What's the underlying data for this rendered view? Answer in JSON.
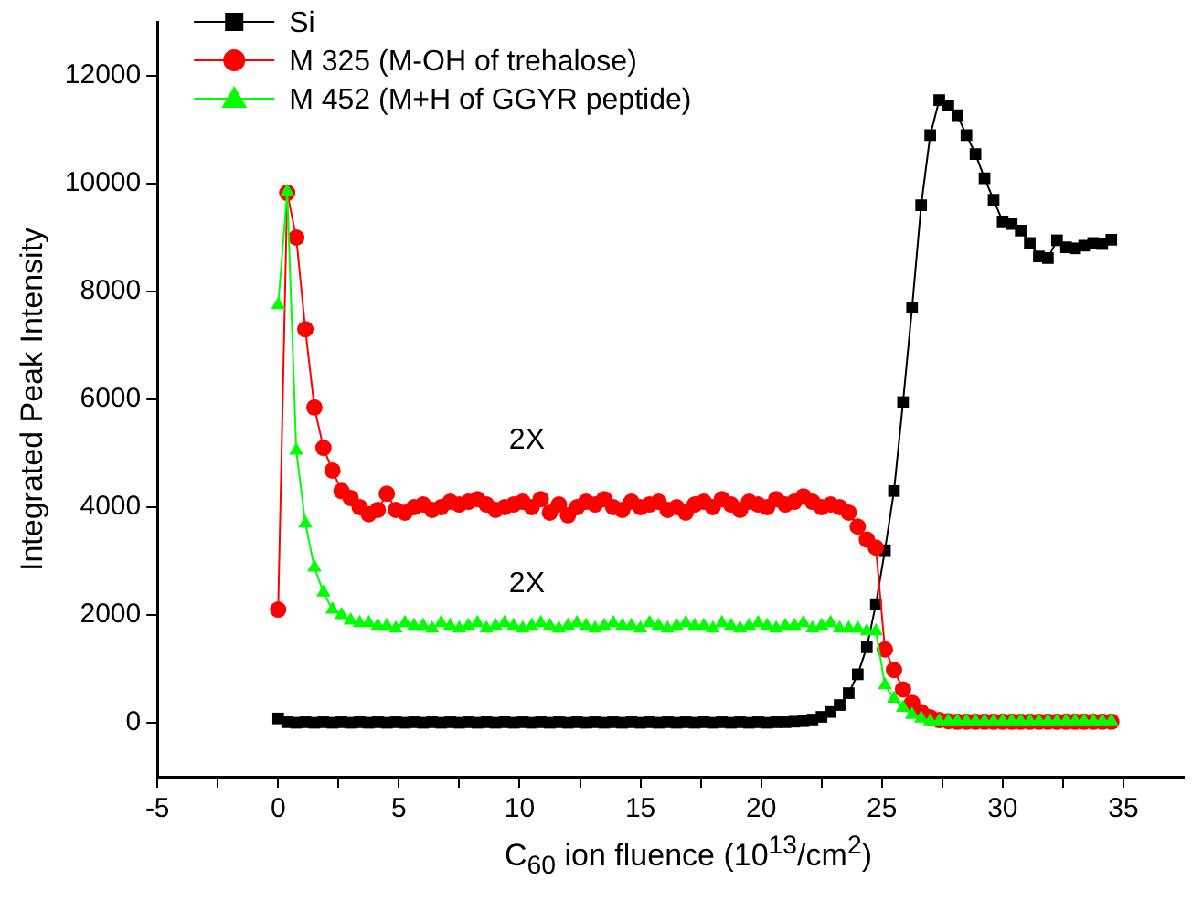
{
  "chart_data": {
    "type": "line",
    "xlabel": "C$_{60}$ ion fluence (10$^{13}$/cm$^{2}$)",
    "ylabel": "Integrated Peak Intensity",
    "x": [
      0,
      0.375,
      0.75,
      1.125,
      1.5,
      1.875,
      2.25,
      2.625,
      3,
      3.375,
      3.75,
      4.125,
      4.5,
      4.875,
      5.25,
      5.625,
      6,
      6.375,
      6.75,
      7.125,
      7.5,
      7.875,
      8.25,
      8.625,
      9,
      9.375,
      9.75,
      10.125,
      10.5,
      10.875,
      11.25,
      11.625,
      12,
      12.375,
      12.75,
      13.125,
      13.5,
      13.875,
      14.25,
      14.625,
      15,
      15.375,
      15.75,
      16.125,
      16.5,
      16.875,
      17.25,
      17.625,
      18,
      18.375,
      18.75,
      19.125,
      19.5,
      19.875,
      20.25,
      20.625,
      21,
      21.375,
      21.75,
      22.125,
      22.5,
      22.875,
      23.25,
      23.625,
      24,
      24.375,
      24.75,
      25.125,
      25.5,
      25.875,
      26.25,
      26.625,
      27,
      27.375,
      27.75,
      28.125,
      28.5,
      28.875,
      29.25,
      29.625,
      30,
      30.375,
      30.75,
      31.125,
      31.5,
      31.875,
      32.25,
      32.625,
      33,
      33.375,
      33.75,
      34.125,
      34.5
    ],
    "series": [
      {
        "name": "Si",
        "color": "#000000",
        "marker": "square",
        "values": [
          80,
          10,
          0,
          10,
          0,
          10,
          0,
          10,
          0,
          10,
          0,
          10,
          0,
          10,
          0,
          10,
          0,
          10,
          0,
          10,
          0,
          10,
          0,
          10,
          0,
          10,
          0,
          10,
          0,
          10,
          0,
          10,
          0,
          10,
          0,
          10,
          0,
          10,
          0,
          10,
          0,
          10,
          0,
          10,
          0,
          10,
          0,
          10,
          0,
          10,
          0,
          10,
          0,
          10,
          0,
          10,
          10,
          20,
          30,
          60,
          110,
          200,
          330,
          550,
          900,
          1400,
          2200,
          3200,
          4300,
          5950,
          7700,
          9600,
          10900,
          11550,
          11450,
          11270,
          10900,
          10550,
          10100,
          9700,
          9300,
          9250,
          9130,
          8900,
          8650,
          8620,
          8950,
          8820,
          8800,
          8850,
          8900,
          8880,
          8960
        ]
      },
      {
        "name": "M 325 (M-OH of trehalose)",
        "color": "#ff0000",
        "marker": "circle",
        "values": [
          2100,
          9830,
          9000,
          7300,
          5850,
          5100,
          4680,
          4300,
          4170,
          4000,
          3870,
          3950,
          4250,
          3950,
          3900,
          4000,
          4050,
          3950,
          4000,
          4100,
          4050,
          4100,
          4150,
          4050,
          3950,
          4000,
          4050,
          4100,
          4000,
          4150,
          3900,
          4050,
          3850,
          4000,
          4100,
          4050,
          4150,
          4000,
          3950,
          4100,
          4000,
          4050,
          4100,
          3950,
          4000,
          3900,
          4050,
          4100,
          4000,
          4150,
          4050,
          3950,
          4100,
          4050,
          4000,
          4150,
          4050,
          4100,
          4200,
          4100,
          4000,
          4050,
          4000,
          3900,
          3640,
          3400,
          3250,
          1360,
          980,
          620,
          370,
          200,
          100,
          50,
          30,
          20,
          20,
          20,
          20,
          20,
          20,
          20,
          20,
          20,
          20,
          20,
          20,
          20,
          20,
          20,
          20,
          20,
          20
        ]
      },
      {
        "name": "M 452 (M+H of GGYR peptide)",
        "color": "#00ff00",
        "marker": "triangle",
        "values": [
          7750,
          9850,
          5050,
          3700,
          2880,
          2420,
          2100,
          2000,
          1900,
          1850,
          1850,
          1800,
          1800,
          1750,
          1850,
          1800,
          1800,
          1750,
          1850,
          1800,
          1750,
          1800,
          1850,
          1750,
          1800,
          1850,
          1800,
          1750,
          1800,
          1850,
          1800,
          1750,
          1800,
          1850,
          1800,
          1750,
          1800,
          1850,
          1800,
          1800,
          1750,
          1850,
          1800,
          1750,
          1800,
          1850,
          1800,
          1800,
          1750,
          1850,
          1800,
          1750,
          1800,
          1850,
          1800,
          1750,
          1800,
          1800,
          1850,
          1750,
          1800,
          1850,
          1750,
          1750,
          1750,
          1700,
          1700,
          700,
          450,
          280,
          150,
          80,
          30,
          30,
          30,
          30,
          30,
          30,
          30,
          30,
          30,
          30,
          30,
          30,
          30,
          30,
          30,
          30,
          30,
          30,
          30,
          30,
          30
        ]
      }
    ],
    "xlim": [
      -5,
      37.5
    ],
    "xticks": [
      -5,
      {
        "value": -2.5,
        "label": null
      },
      0,
      {
        "value": 2.5,
        "label": null
      },
      5,
      {
        "value": 7.5,
        "label": null
      },
      10,
      {
        "value": 12.5,
        "label": null
      },
      15,
      {
        "value": 17.5,
        "label": null
      },
      20,
      {
        "value": 22.5,
        "label": null
      },
      25,
      {
        "value": 27.5,
        "label": null
      },
      30,
      {
        "value": 32.5,
        "label": null
      },
      35
    ],
    "ylim": [
      -1000,
      13000
    ],
    "yticks": [
      0,
      2000,
      4000,
      6000,
      8000,
      10000,
      12000
    ],
    "annotations": [
      "2X",
      "2X"
    ],
    "legend": "top left",
    "grid": false,
    "line_style": "solid"
  }
}
